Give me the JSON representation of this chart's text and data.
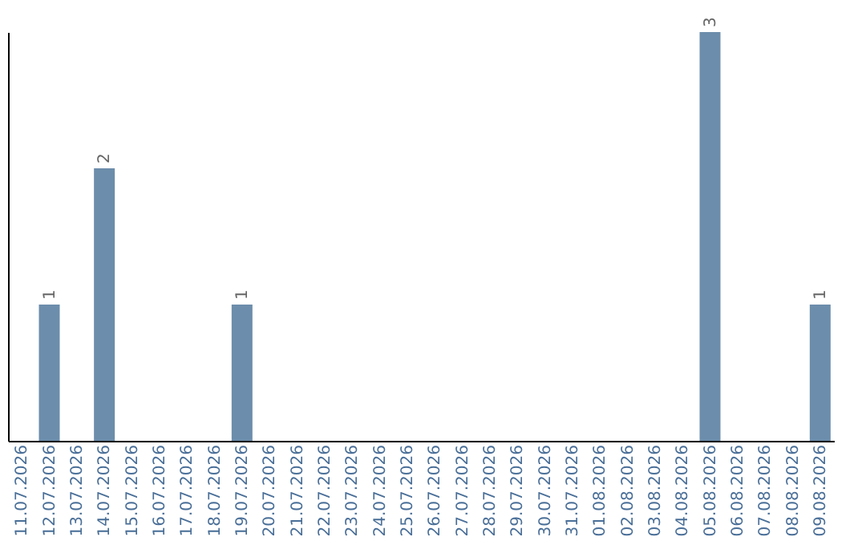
{
  "chart_data": {
    "type": "bar",
    "categories": [
      "11.07.2026",
      "12.07.2026",
      "13.07.2026",
      "14.07.2026",
      "15.07.2026",
      "16.07.2026",
      "17.07.2026",
      "18.07.2026",
      "19.07.2026",
      "20.07.2026",
      "21.07.2026",
      "22.07.2026",
      "23.07.2026",
      "24.07.2026",
      "25.07.2026",
      "26.07.2026",
      "27.07.2026",
      "28.07.2026",
      "29.07.2026",
      "30.07.2026",
      "31.07.2026",
      "01.08.2026",
      "02.08.2026",
      "03.08.2026",
      "04.08.2026",
      "05.08.2026",
      "06.08.2026",
      "07.08.2026",
      "08.08.2026",
      "09.08.2026"
    ],
    "values": [
      0,
      1,
      0,
      2,
      0,
      0,
      0,
      0,
      1,
      0,
      0,
      0,
      0,
      0,
      0,
      0,
      0,
      0,
      0,
      0,
      0,
      0,
      0,
      0,
      0,
      3,
      0,
      0,
      0,
      1
    ],
    "value_labels": [
      null,
      "1",
      null,
      "2",
      null,
      null,
      null,
      null,
      "1",
      null,
      null,
      null,
      null,
      null,
      null,
      null,
      null,
      null,
      null,
      null,
      null,
      null,
      null,
      null,
      null,
      "3",
      null,
      null,
      null,
      "1"
    ],
    "color": "#6c8dab",
    "ylim": [
      0,
      3
    ],
    "tick_labels": "x",
    "grid": false
  }
}
